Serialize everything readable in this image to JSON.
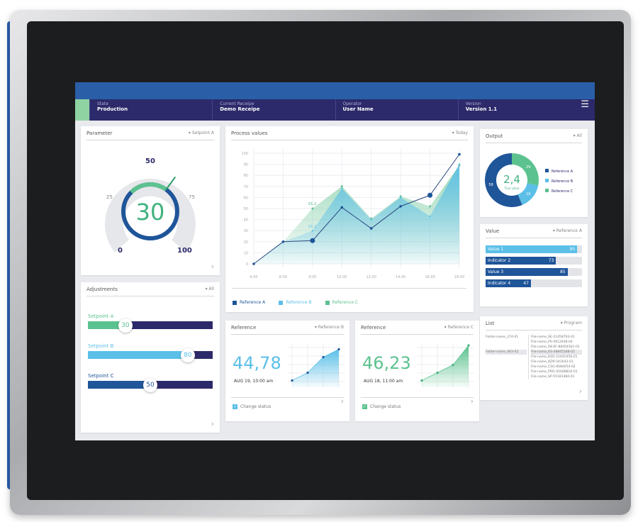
{
  "colors": {
    "navy": "#2c2a6a",
    "blue": "#1f5599",
    "light_blue": "#5bbfe8",
    "green": "#5cc28f",
    "header": "#2a5fa8"
  },
  "header": {
    "fields": [
      {
        "key": "State",
        "value": "Production"
      },
      {
        "key": "Current Receipe",
        "value": "Demo Receipe"
      },
      {
        "key": "Operator",
        "value": "User Name"
      },
      {
        "key": "Version",
        "value": "Version 1.1"
      }
    ],
    "menu_icon": "hamburger-icon"
  },
  "parameter": {
    "title": "Parameter",
    "filter": "Setpoint A",
    "value": "30",
    "ticks": {
      "min": "0",
      "q1": "25",
      "mid": "50",
      "q3": "75",
      "max": "100"
    },
    "level": 30
  },
  "adjustments": {
    "title": "Adjustments",
    "filter": "All",
    "sliders": [
      {
        "label": "Setpoint A",
        "value": "30",
        "color": "#5cc28f"
      },
      {
        "label": "Setpoint B",
        "value": "80",
        "color": "#5bbfe8"
      },
      {
        "label": "Setpoint C",
        "value": "50",
        "color": "#1f5599"
      }
    ]
  },
  "process": {
    "title": "Process values",
    "filter": "Today",
    "annotations": [
      "V1.2",
      "V1.2"
    ],
    "chart_data": {
      "type": "area",
      "x": [
        "6:00",
        "8:00",
        "9:00",
        "10:00",
        "12:00",
        "14:00",
        "16:00",
        "18:00"
      ],
      "yticks": [
        "0",
        "10",
        "20",
        "30",
        "40",
        "50",
        "60",
        "70",
        "80",
        "90",
        "100"
      ],
      "ylim": [
        0,
        100
      ],
      "grid": true,
      "legend": "bottom",
      "series": [
        {
          "name": "Reference A",
          "color": "#1f5599",
          "values": [
            0,
            20,
            21,
            51,
            32,
            52,
            62,
            99
          ]
        },
        {
          "name": "Reference B",
          "color": "#5bbfe8",
          "values": [
            0,
            20,
            30,
            68,
            40,
            60,
            43,
            90
          ]
        },
        {
          "name": "Reference C",
          "color": "#5cc28f",
          "values": [
            0,
            20,
            50,
            70,
            41,
            61,
            52,
            89
          ]
        }
      ]
    }
  },
  "references": [
    {
      "title": "Reference",
      "filter": "Reference B",
      "value": "44,78",
      "date": "AUG 19, 10:00 am",
      "check": "Change status",
      "color": "#5bbfe8",
      "points": [
        10,
        30,
        70,
        90
      ]
    },
    {
      "title": "Reference",
      "filter": "Reference C",
      "value": "46,23",
      "date": "AUG 18, 11:00 am",
      "check": "Change status",
      "color": "#5cc28f",
      "points": [
        10,
        30,
        50,
        100
      ]
    }
  ],
  "output": {
    "title": "Output",
    "filter": "All",
    "center": "2,4",
    "center_sub": "True value",
    "slices": [
      {
        "name": "Reference A",
        "value": 58,
        "label": "58",
        "color": "#1f5599"
      },
      {
        "name": "Reference B",
        "value": 16,
        "label": "16",
        "color": "#5bbfe8"
      },
      {
        "name": "Reference C",
        "value": 29,
        "label": "29",
        "color": "#5cc28f"
      }
    ]
  },
  "value": {
    "title": "Value",
    "filter": "Reference A",
    "bars": [
      {
        "label": "Value 1",
        "value": 95,
        "text": "95",
        "color": "#5bbfe8"
      },
      {
        "label": "Indicator 2",
        "value": 73,
        "text": "73",
        "color": "#1f5599"
      },
      {
        "label": "Value 3",
        "value": 85,
        "text": "85",
        "color": "#1f5599"
      },
      {
        "label": "Indicator 4",
        "value": 47,
        "text": "47",
        "color": "#1f5599"
      }
    ]
  },
  "list": {
    "title": "List",
    "filter": "Program",
    "folders": [
      "Folder-name_274-01",
      "Folder-name_463-02"
    ],
    "files": [
      "File-name_SE-21458793-01",
      "File-name_PS-5612458-04",
      "File-name_RK-SF-88454561-01",
      "File-name_KS-48845588-02",
      "File-name_KSO-21645456-01",
      "File-name_KDR-541642-01",
      "File-name_CSG-6684654-02",
      "File-name_PRO-45408816-01",
      "File-name_SP-55181484-01"
    ]
  }
}
